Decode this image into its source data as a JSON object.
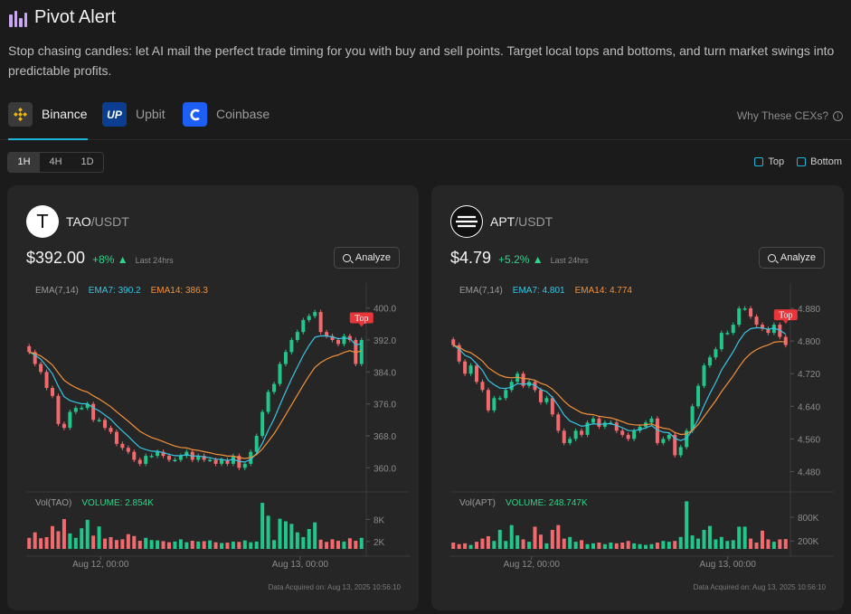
{
  "header": {
    "title": "Pivot Alert",
    "description": "Stop chasing candles: let AI mail the perfect trade timing for you with buy and sell points. Target local tops and bottoms, and turn market swings into predictable profits."
  },
  "exchanges": {
    "tabs": [
      {
        "label": "Binance",
        "active": true,
        "icon": "binance-icon"
      },
      {
        "label": "Upbit",
        "active": false,
        "icon": "upbit-icon"
      },
      {
        "label": "Coinbase",
        "active": false,
        "icon": "coinbase-icon"
      }
    ],
    "why_link": "Why These CEXs?"
  },
  "timeframes": {
    "options": [
      "1H",
      "4H",
      "1D"
    ],
    "selected": "1H"
  },
  "filters": {
    "top_label": "Top",
    "bottom_label": "Bottom"
  },
  "cards": [
    {
      "symbol": "TAO",
      "quote": "/USDT",
      "logo_glyph": "T",
      "price": "$392.00",
      "change": "+8%",
      "period": "Last 24hrs",
      "analyze_label": "Analyze",
      "ema_label": "EMA(7,14)",
      "ema7_label": "EMA7: 390.2",
      "ema14_label": "EMA14: 386.3",
      "vol_label": "Vol(TAO)",
      "volume_label": "VOLUME: 2.854K",
      "acquired": "Data Acquired on: Aug 13, 2025 10:56:10",
      "top_marker": "Top",
      "chart_data": {
        "type": "candlestick",
        "price_ticks": [
          "400.0",
          "392.0",
          "384.0",
          "376.0",
          "368.0",
          "360.0"
        ],
        "price_tick_values": [
          400,
          392,
          384,
          376,
          368,
          360
        ],
        "price_range": [
          356,
          404
        ],
        "volume_ticks": [
          "8K",
          "2K"
        ],
        "volume_tick_values": [
          8000,
          2000
        ],
        "volume_range": [
          0,
          14000
        ],
        "x_labels": [
          "Aug 12, 00:00",
          "Aug 13, 00:00"
        ],
        "x_label_positions": [
          0.22,
          0.81
        ],
        "top_index": 60,
        "close": [
          389,
          386,
          384,
          380,
          378,
          371,
          370,
          374,
          375,
          375,
          376,
          372,
          372,
          370,
          369,
          366,
          365,
          364,
          362,
          361,
          363,
          363,
          364,
          363,
          362,
          362,
          363,
          364,
          362,
          363,
          362,
          362,
          361,
          362,
          361,
          363,
          360,
          361,
          364,
          368,
          374,
          379,
          381,
          386,
          389,
          392,
          394,
          397,
          398,
          399,
          394,
          393,
          392,
          391,
          393,
          392,
          386,
          392
        ],
        "volume": [
          3000,
          4500,
          2900,
          3200,
          6200,
          4800,
          8100,
          4200,
          3000,
          5600,
          7900,
          3600,
          6100,
          2800,
          3200,
          2400,
          2600,
          4000,
          3500,
          2200,
          3000,
          2400,
          2300,
          2100,
          1800,
          2000,
          2600,
          1800,
          2200,
          2000,
          2100,
          2300,
          1800,
          1600,
          1700,
          2000,
          1900,
          2300,
          1800,
          2000,
          12500,
          9000,
          2400,
          8200,
          7500,
          6800,
          4500,
          3200,
          5400,
          7200,
          2500,
          1900,
          2600,
          2200,
          2000,
          2900,
          2200,
          3000
        ]
      }
    },
    {
      "symbol": "APT",
      "quote": "/USDT",
      "logo_glyph": "≡",
      "price": "$4.79",
      "change": "+5.2%",
      "period": "Last 24hrs",
      "analyze_label": "Analyze",
      "ema_label": "EMA(7,14)",
      "ema7_label": "EMA7: 4.801",
      "ema14_label": "EMA14: 4.774",
      "vol_label": "Vol(APT)",
      "volume_label": "VOLUME: 248.747K",
      "acquired": "Data Acquired on: Aug 13, 2025 10:56:10",
      "top_marker": "Top",
      "chart_data": {
        "type": "candlestick",
        "price_ticks": [
          "4.880",
          "4.800",
          "4.720",
          "4.640",
          "4.560",
          "4.480"
        ],
        "price_tick_values": [
          4.88,
          4.8,
          4.72,
          4.64,
          4.56,
          4.48
        ],
        "price_range": [
          4.45,
          4.92
        ],
        "volume_ticks": [
          "800K",
          "200K"
        ],
        "volume_tick_values": [
          800000,
          200000
        ],
        "volume_range": [
          0,
          1300000
        ],
        "x_labels": [
          "Aug 12, 00:00",
          "Aug 13, 00:00"
        ],
        "x_label_positions": [
          0.24,
          0.82
        ],
        "top_index": 59,
        "close": [
          4.79,
          4.75,
          4.72,
          4.74,
          4.7,
          4.68,
          4.63,
          4.66,
          4.66,
          4.68,
          4.7,
          4.72,
          4.69,
          4.7,
          4.68,
          4.65,
          4.66,
          4.62,
          4.58,
          4.55,
          4.56,
          4.58,
          4.57,
          4.6,
          4.61,
          4.59,
          4.6,
          4.6,
          4.58,
          4.57,
          4.56,
          4.58,
          4.59,
          4.6,
          4.61,
          4.55,
          4.56,
          4.57,
          4.52,
          4.54,
          4.58,
          4.64,
          4.69,
          4.74,
          4.76,
          4.78,
          4.82,
          4.82,
          4.84,
          4.88,
          4.88,
          4.86,
          4.84,
          4.83,
          4.82,
          4.84,
          4.81,
          4.79
        ],
        "volume": [
          160000,
          120000,
          140000,
          100000,
          180000,
          260000,
          320000,
          200000,
          480000,
          200000,
          600000,
          340000,
          240000,
          180000,
          560000,
          360000,
          140000,
          480000,
          600000,
          260000,
          300000,
          180000,
          220000,
          120000,
          140000,
          160000,
          120000,
          160000,
          140000,
          160000,
          200000,
          140000,
          120000,
          100000,
          120000,
          160000,
          200000,
          180000,
          200000,
          300000,
          1200000,
          340000,
          260000,
          480000,
          580000,
          240000,
          300000,
          200000,
          220000,
          560000,
          560000,
          260000,
          160000,
          460000,
          240000,
          180000,
          240000,
          248000
        ]
      }
    }
  ],
  "colors": {
    "up": "#22c58a",
    "down": "#f26a6e",
    "ema7": "#37c6e4",
    "ema14": "#f2913a",
    "accent": "#1fb6d8",
    "top_marker": "#e8353a"
  }
}
